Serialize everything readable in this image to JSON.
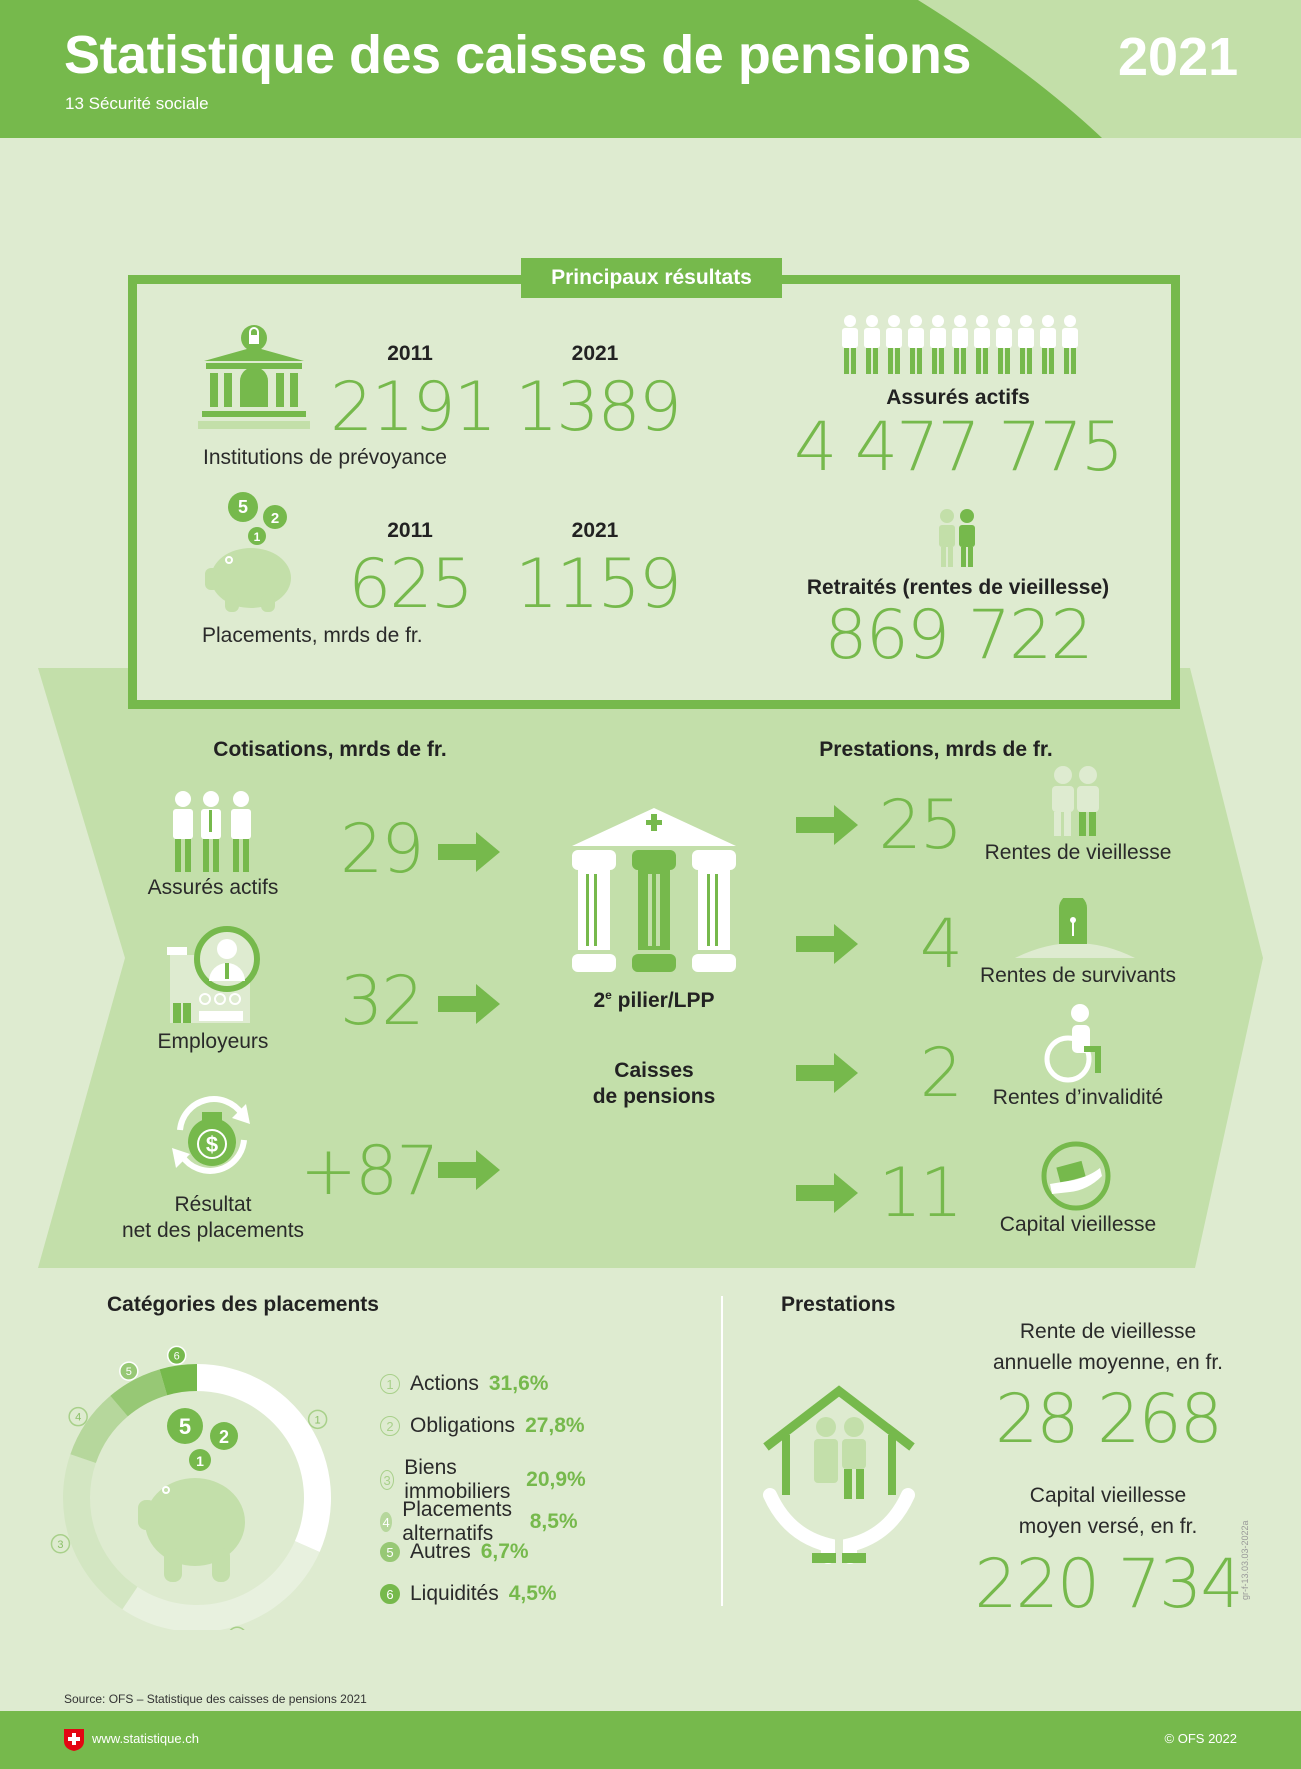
{
  "header": {
    "title": "Statistique des caisses de pensions",
    "subtitle": "13 Sécurité sociale",
    "year": "2021"
  },
  "main_results": {
    "label": "Principaux résultats",
    "institutions": {
      "label": "Institutions de prévoyance",
      "year1": "2011",
      "value1": "2191",
      "year2": "2021",
      "value2": "1389"
    },
    "placements": {
      "label": "Placements, mrds de fr.",
      "year1": "2011",
      "value1": "625",
      "year2": "2021",
      "value2": "1159"
    },
    "active": {
      "label": "Assurés actifs",
      "value": "4 477 775"
    },
    "retired": {
      "label": "Retraités (rentes de vieillesse)",
      "value": "869 722"
    }
  },
  "flows": {
    "contrib_title": "Cotisations, mrds de fr.",
    "benefit_title": "Prestations, mrds de fr.",
    "contributions": [
      {
        "label": "Assurés actifs",
        "value": "29"
      },
      {
        "label": "Employeurs",
        "value": "32"
      },
      {
        "label": "Résultat\nnet des placements",
        "value": "+87"
      }
    ],
    "center": {
      "pillar": "2",
      "pillar_sup": "e",
      "pillar_rest": " pilier/LPP",
      "funds": "Caisses\nde pensions"
    },
    "benefits": [
      {
        "label": "Rentes de vieillesse",
        "value": "25"
      },
      {
        "label": "Rentes de survivants",
        "value": "4"
      },
      {
        "label": "Rentes d’invalidité",
        "value": "2"
      },
      {
        "label": "Capital vieillesse",
        "value": "11"
      }
    ]
  },
  "chart_data": {
    "type": "pie",
    "title": "Catégories des placements",
    "categories": [
      "Actions",
      "Obligations",
      "Biens immobiliers",
      "Placements alternatifs",
      "Autres",
      "Liquidités"
    ],
    "values": [
      31.6,
      27.8,
      20.9,
      8.5,
      6.7,
      4.5
    ],
    "labels": [
      "31,6%",
      "27,8%",
      "20,9%",
      "8,5%",
      "6,7%",
      "4,5%"
    ],
    "markers": [
      "1",
      "2",
      "3",
      "4",
      "5",
      "6"
    ],
    "colors": [
      "#ffffff",
      "#e8f1df",
      "#d3e6c2",
      "#b6d79c",
      "#97c875",
      "#76b94c"
    ]
  },
  "prestations": {
    "title": "Prestations",
    "rente_label": "Rente de vieillesse\nannuelle moyenne, en fr.",
    "rente_value": "28 268",
    "capital_label": "Capital vieillesse\nmoyen versé, en fr.",
    "capital_value": "220 734"
  },
  "source": "Source: OFS – Statistique des caisses de pensions 2021",
  "code": "gr-f-13.03.03-2022a",
  "footer": {
    "url": "www.statistique.ch",
    "copyright": "© OFS 2022"
  },
  "colors": {
    "green": "#76b94c",
    "light": "#c3dfaa",
    "bg": "#deebd0"
  }
}
